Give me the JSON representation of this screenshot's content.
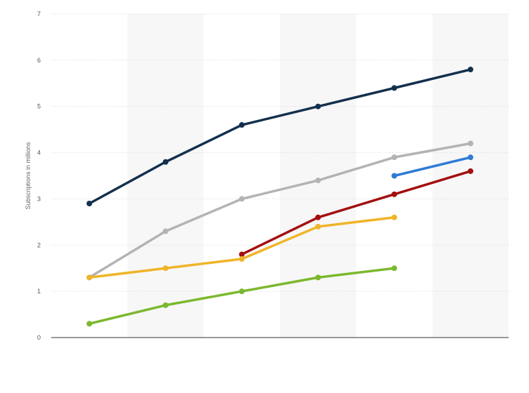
{
  "chart_data": {
    "type": "line",
    "title": "",
    "xlabel": "",
    "ylabel": "Subscriptions in millions",
    "ylim": [
      0,
      7
    ],
    "yticks": [
      0,
      1,
      2,
      3,
      4,
      5,
      6,
      7
    ],
    "grid": true,
    "legend": "none",
    "categories": [
      "",
      "",
      "",
      "",
      "",
      ""
    ],
    "series": [
      {
        "color": "#13304d",
        "values": [
          2.9,
          3.8,
          4.6,
          5.0,
          5.4,
          5.8
        ]
      },
      {
        "color": "#b3b3b3",
        "values": [
          1.3,
          2.3,
          3.0,
          3.4,
          3.9,
          4.2
        ]
      },
      {
        "color": "#2e7bd6",
        "values": [
          null,
          null,
          null,
          null,
          3.5,
          3.9
        ]
      },
      {
        "color": "#a30f0f",
        "values": [
          null,
          null,
          1.8,
          2.6,
          3.1,
          3.6
        ]
      },
      {
        "color": "#f0b429",
        "values": [
          1.3,
          1.5,
          1.7,
          2.4,
          2.6,
          null
        ]
      },
      {
        "color": "#7cb82f",
        "values": [
          0.3,
          0.7,
          1.0,
          1.3,
          1.5,
          null
        ]
      }
    ]
  }
}
